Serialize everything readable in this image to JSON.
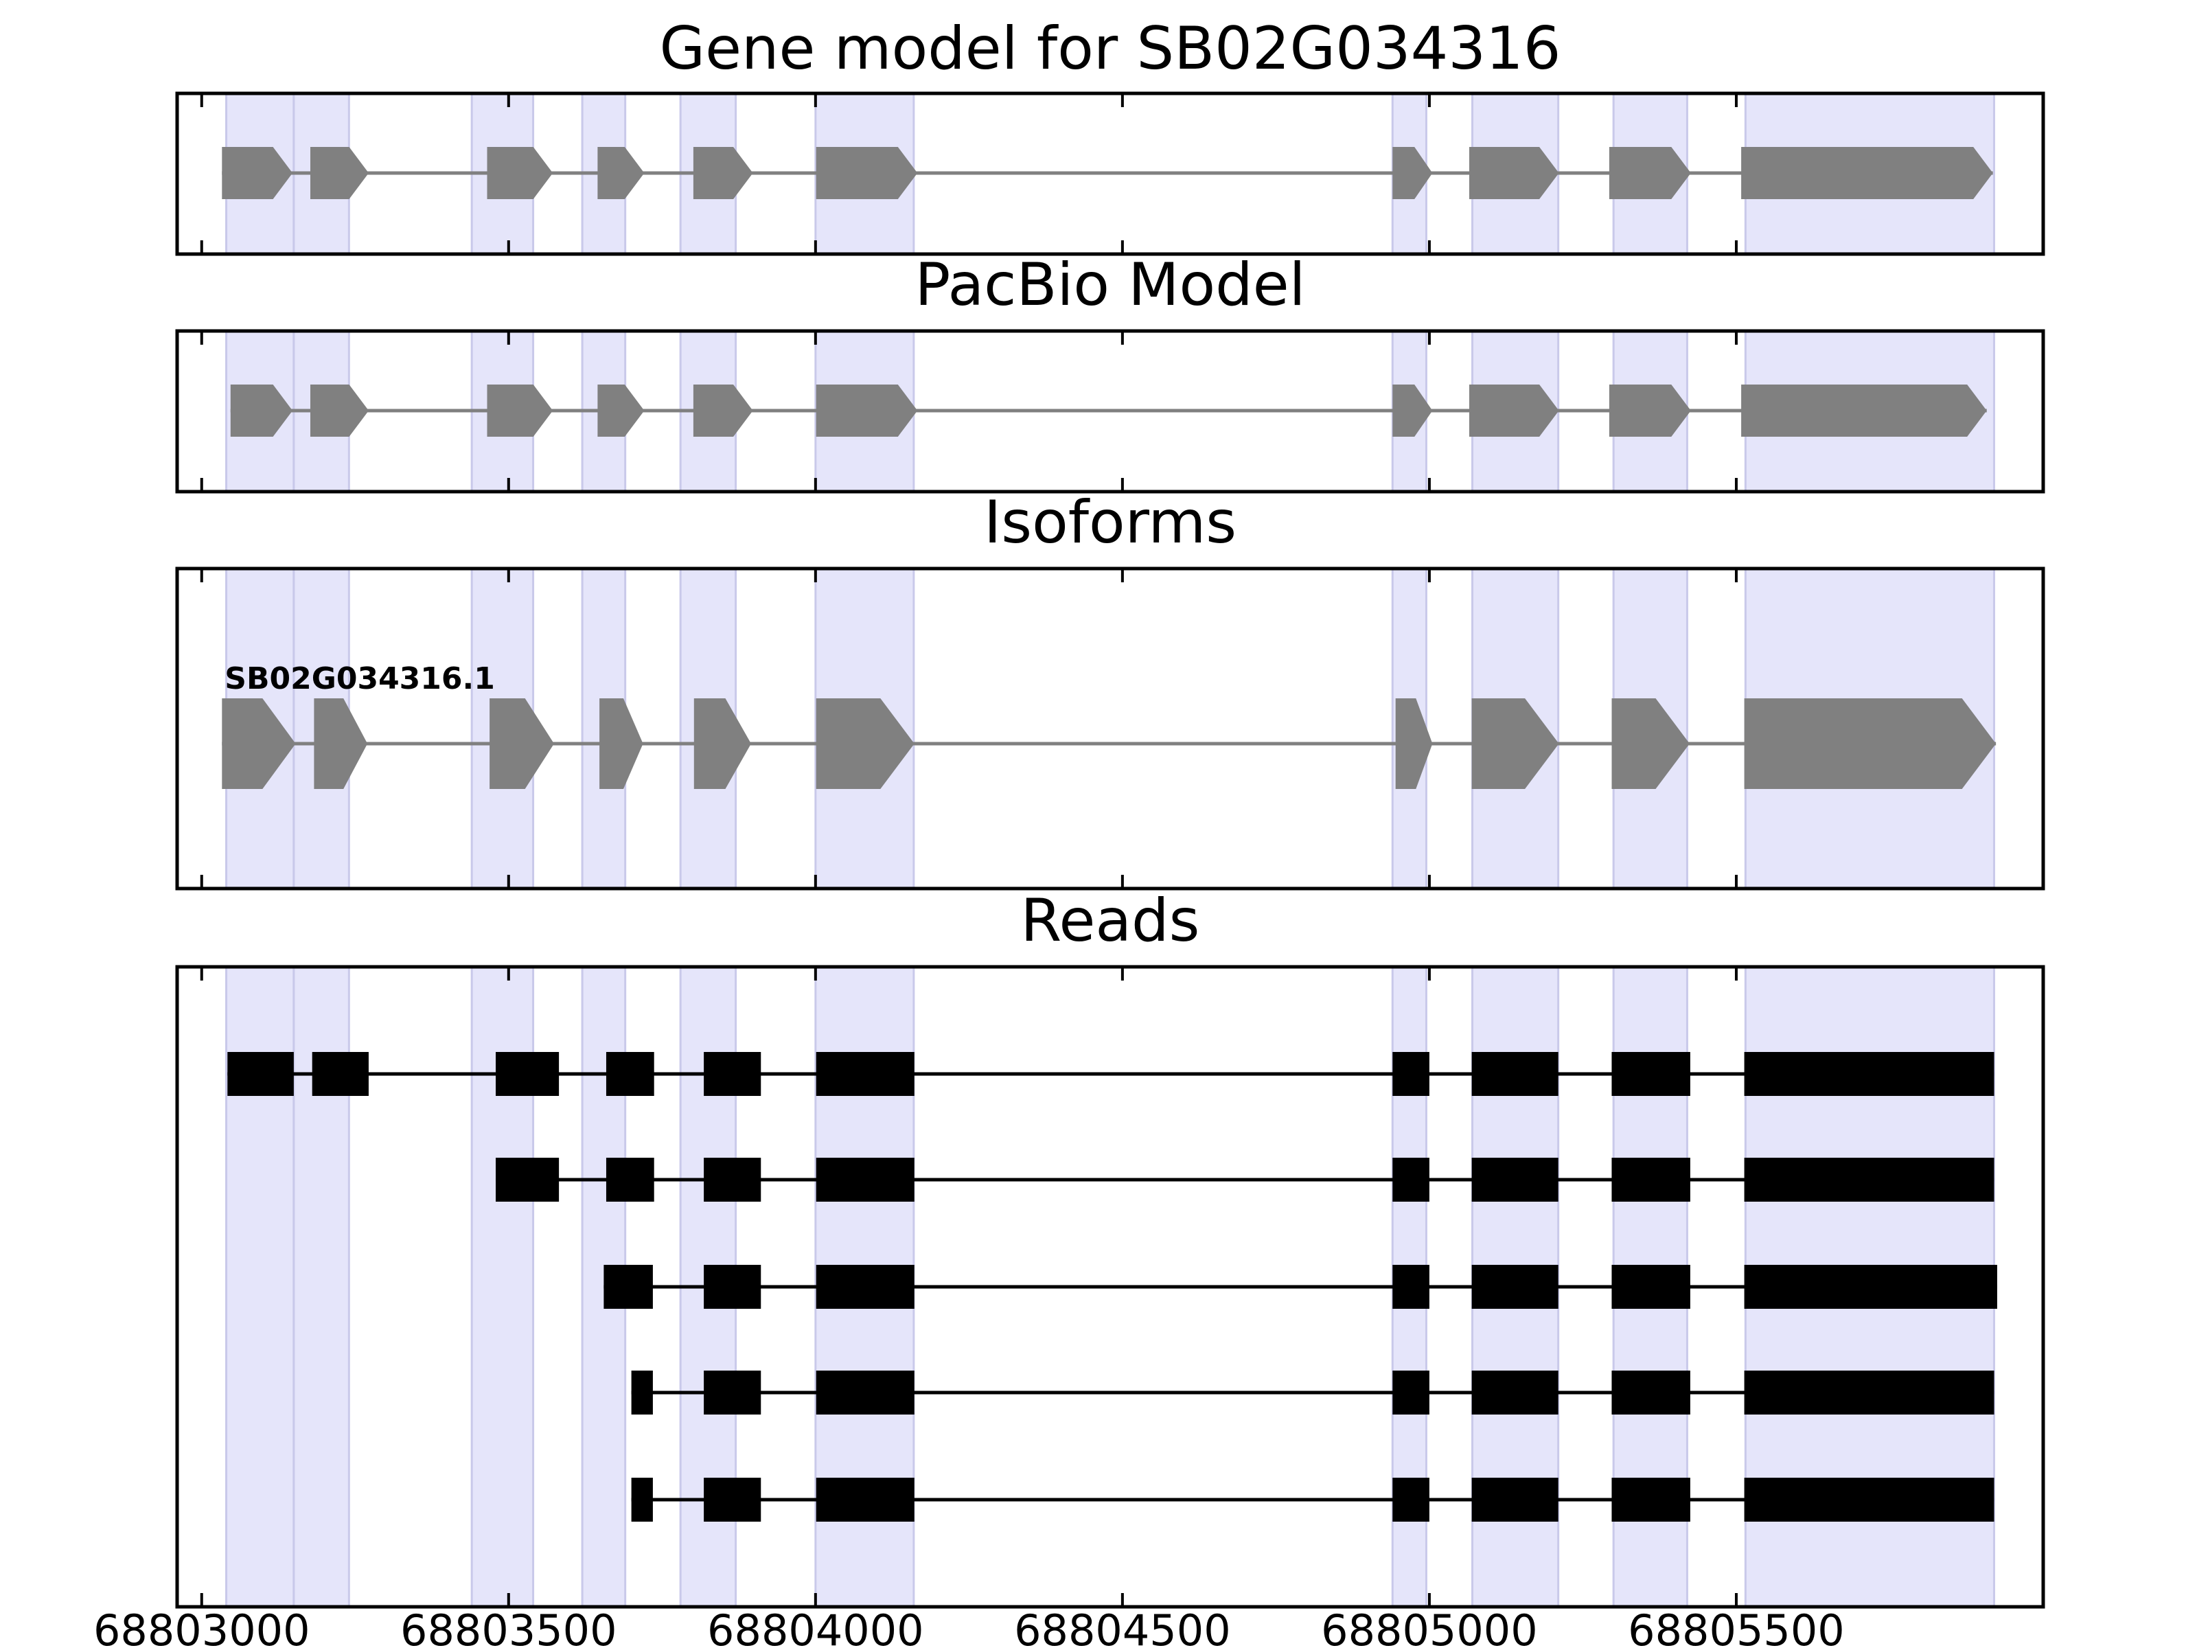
{
  "chart_data": {
    "type": "gene-track",
    "xlim": [
      68802960,
      68806000
    ],
    "x_ticks": [
      68803000,
      68803500,
      68804000,
      68804500,
      68805000,
      68805500
    ],
    "x_tick_labels": [
      "68803000",
      "68803500",
      "68804000",
      "68804500",
      "68805000",
      "68805500"
    ],
    "grid": false,
    "colors": {
      "exon_model": "#808080",
      "intron_model": "#808080",
      "read": "#000000",
      "highlight": "#e5e5fa",
      "highlight_edge": "#c9c9ea",
      "frame": "#000000"
    },
    "highlight_regions": [
      [
        68803040,
        68803150
      ],
      [
        68803150,
        68803240
      ],
      [
        68803440,
        68803540
      ],
      [
        68803620,
        68803690
      ],
      [
        68803780,
        68803870
      ],
      [
        68804000,
        68804160
      ],
      [
        68804940,
        68804995
      ],
      [
        68805070,
        68805210
      ],
      [
        68805300,
        68805420
      ],
      [
        68805515,
        68805920
      ]
    ],
    "panels": [
      {
        "id": "gene-model",
        "title": "Gene model for SB02G034316",
        "rows": [
          {
            "label": "",
            "exons": [
              [
                68803033,
                68803148
              ],
              [
                68803177,
                68803272
              ],
              [
                68803465,
                68803572
              ],
              [
                68803645,
                68803721
              ],
              [
                68803801,
                68803898
              ],
              [
                68804001,
                68804166
              ],
              [
                68804940,
                68805005
              ],
              [
                68805065,
                68805211
              ],
              [
                68805293,
                68805426
              ],
              [
                68805508,
                68805918
              ]
            ]
          }
        ]
      },
      {
        "id": "pacbio-model",
        "title": "PacBio Model",
        "rows": [
          {
            "label": "",
            "exons": [
              [
                68803047,
                68803148
              ],
              [
                68803177,
                68803272
              ],
              [
                68803465,
                68803572
              ],
              [
                68803645,
                68803721
              ],
              [
                68803801,
                68803898
              ],
              [
                68804001,
                68804166
              ],
              [
                68804940,
                68805005
              ],
              [
                68805065,
                68805211
              ],
              [
                68805293,
                68805426
              ],
              [
                68805508,
                68805908
              ]
            ]
          }
        ]
      },
      {
        "id": "isoforms",
        "title": "Isoforms",
        "rows": [
          {
            "label": "SB02G034316.1",
            "exons": [
              [
                68803033,
                68803153
              ],
              [
                68803183,
                68803270
              ],
              [
                68803469,
                68803574
              ],
              [
                68803648,
                68803719
              ],
              [
                68803802,
                68803895
              ],
              [
                68804001,
                68804161
              ],
              [
                68804945,
                68805005
              ],
              [
                68805069,
                68805211
              ],
              [
                68805297,
                68805424
              ],
              [
                68805513,
                68805923
              ]
            ]
          }
        ]
      },
      {
        "id": "reads",
        "title": "Reads",
        "rows": [
          {
            "label": "",
            "exons": [
              [
                68803042,
                68803150
              ],
              [
                68803180,
                68803272
              ],
              [
                68803479,
                68803582
              ],
              [
                68803659,
                68803737
              ],
              [
                68803818,
                68803911
              ],
              [
                68804001,
                68804161
              ],
              [
                68804940,
                68805000
              ],
              [
                68805069,
                68805210
              ],
              [
                68805297,
                68805425
              ],
              [
                68805513,
                68805920
              ]
            ]
          },
          {
            "label": "",
            "exons": [
              [
                68803479,
                68803582
              ],
              [
                68803659,
                68803737
              ],
              [
                68803818,
                68803911
              ],
              [
                68804001,
                68804161
              ],
              [
                68804940,
                68805000
              ],
              [
                68805069,
                68805210
              ],
              [
                68805297,
                68805425
              ],
              [
                68805513,
                68805920
              ]
            ]
          },
          {
            "label": "",
            "exons": [
              [
                68803655,
                68803735
              ],
              [
                68803818,
                68803911
              ],
              [
                68804001,
                68804161
              ],
              [
                68804940,
                68805000
              ],
              [
                68805069,
                68805210
              ],
              [
                68805297,
                68805425
              ],
              [
                68805513,
                68805925
              ]
            ]
          },
          {
            "label": "",
            "exons": [
              [
                68803700,
                68803735
              ],
              [
                68803818,
                68803911
              ],
              [
                68804001,
                68804161
              ],
              [
                68804940,
                68805000
              ],
              [
                68805069,
                68805210
              ],
              [
                68805297,
                68805425
              ],
              [
                68805513,
                68805920
              ]
            ]
          },
          {
            "label": "",
            "exons": [
              [
                68803700,
                68803735
              ],
              [
                68803818,
                68803911
              ],
              [
                68804001,
                68804161
              ],
              [
                68804940,
                68805000
              ],
              [
                68805069,
                68805210
              ],
              [
                68805297,
                68805425
              ],
              [
                68805513,
                68805920
              ]
            ]
          }
        ]
      }
    ]
  }
}
